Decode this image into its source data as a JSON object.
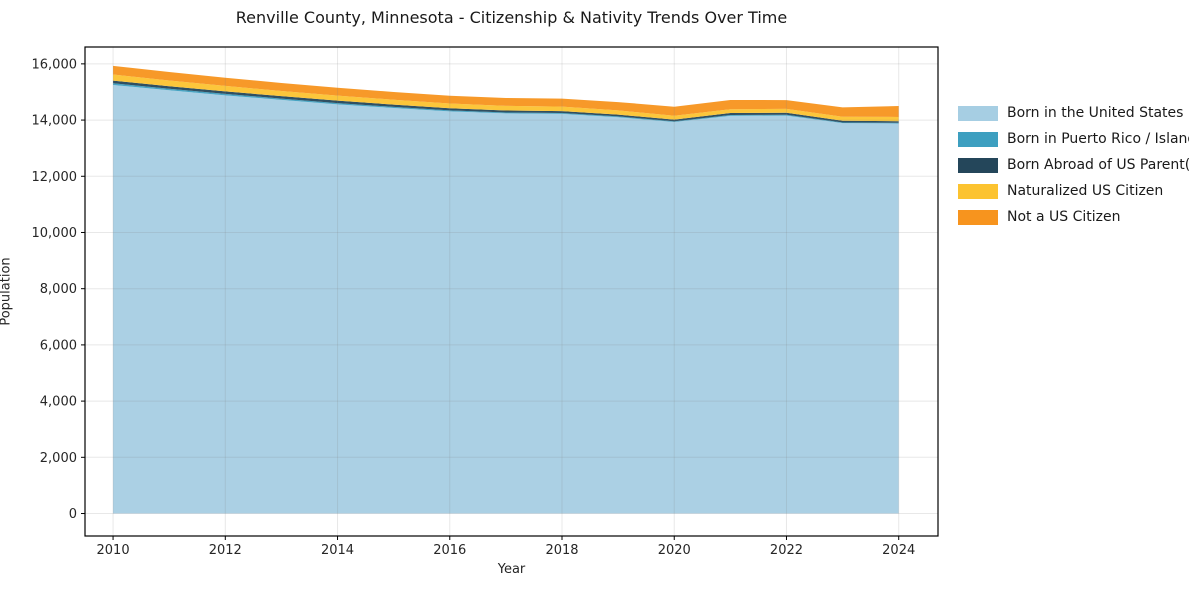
{
  "figure": {
    "title": "Renville County, Minnesota - Citizenship & Nativity Trends Over Time",
    "xlabel": "Year",
    "ylabel": "Population"
  },
  "chart_data": {
    "type": "area",
    "stacked": true,
    "title": "Renville County, Minnesota - Citizenship & Nativity Trends Over Time",
    "xlabel": "Year",
    "ylabel": "Population",
    "x": [
      2010,
      2011,
      2012,
      2013,
      2014,
      2015,
      2016,
      2017,
      2018,
      2019,
      2020,
      2021,
      2022,
      2023,
      2024
    ],
    "series": [
      {
        "name": "Born in the United States",
        "color": "#a6cee3",
        "values": [
          15250,
          15060,
          14880,
          14720,
          14560,
          14430,
          14310,
          14240,
          14220,
          14100,
          13930,
          14150,
          14160,
          13890,
          13880
        ]
      },
      {
        "name": "Born in Puerto Rico / Islands",
        "color": "#3d9fc0",
        "values": [
          60,
          55,
          50,
          45,
          45,
          40,
          35,
          30,
          30,
          30,
          25,
          30,
          30,
          25,
          25
        ]
      },
      {
        "name": "Born Abroad of US Parent(s)",
        "color": "#24465a",
        "values": [
          95,
          90,
          90,
          85,
          85,
          80,
          75,
          70,
          70,
          65,
          60,
          70,
          70,
          60,
          55
        ]
      },
      {
        "name": "Naturalized US Citizen",
        "color": "#fcc330",
        "values": [
          215,
          205,
          195,
          185,
          180,
          175,
          170,
          165,
          160,
          150,
          140,
          135,
          140,
          145,
          150
        ]
      },
      {
        "name": "Not a US Citizen",
        "color": "#f7941e",
        "values": [
          310,
          300,
          290,
          285,
          280,
          275,
          275,
          280,
          285,
          295,
          320,
          330,
          310,
          330,
          390
        ]
      }
    ],
    "totals": [
      15930,
      15710,
      15505,
      15320,
      15150,
      15000,
      14865,
      14785,
      14765,
      14640,
      14475,
      14715,
      14710,
      14450,
      14500
    ],
    "xticks": {
      "values": [
        2010,
        2012,
        2014,
        2016,
        2018,
        2020,
        2022,
        2024
      ],
      "labels": [
        "2010",
        "2012",
        "2014",
        "2016",
        "2018",
        "2020",
        "2022",
        "2024"
      ]
    },
    "yticks": {
      "values": [
        0,
        2000,
        4000,
        6000,
        8000,
        10000,
        12000,
        14000,
        16000
      ],
      "labels": [
        "0",
        "2,000",
        "4,000",
        "6,000",
        "8,000",
        "10,000",
        "12,000",
        "14,000",
        "16,000"
      ]
    },
    "xlim": [
      2009.5,
      2024.7
    ],
    "ylim": [
      -800,
      16600
    ],
    "grid": true,
    "legend_position": "right-outside",
    "colors": {
      "background": "#ffffff",
      "spine": "#000000",
      "gridline": "#e7e7e7",
      "tick_text": "#262626"
    }
  }
}
